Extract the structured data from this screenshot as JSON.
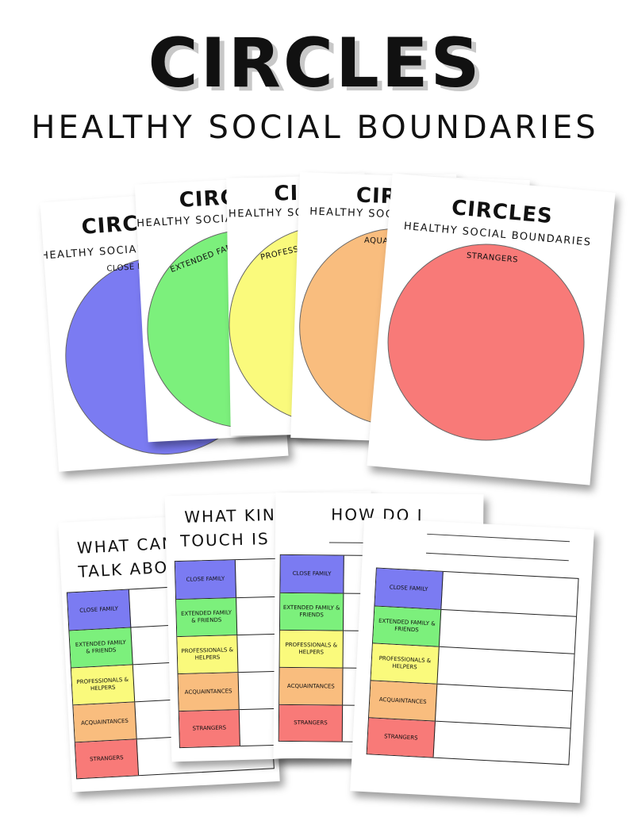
{
  "header": {
    "title": "CIRCLES",
    "subtitle": "HEALTHY SOCIAL BOUNDARIES"
  },
  "circle_sheets": [
    {
      "title": "CIRCLES",
      "subtitle": "HEALTHY SOCIAL BOUNDARIES",
      "label": "CLOSE FAMILY",
      "color": "#7b7bf2"
    },
    {
      "title": "CIRCLES",
      "subtitle": "HEALTHY SOCIAL BOUNDARIES",
      "label": "EXTENDED FAMILY & FRIENDS",
      "color": "#7cf07c"
    },
    {
      "title": "CIRCLES",
      "subtitle": "HEALTHY SOCIAL BOUNDARIES",
      "label": "PROFESSIONALS & HELPERS",
      "color": "#fafa7c"
    },
    {
      "title": "CIRCLES",
      "subtitle": "HEALTHY SOCIAL BOUNDARIES",
      "label": "AQUAINTANCES",
      "color": "#f9bd7e"
    },
    {
      "title": "CIRCLES",
      "subtitle": "HEALTHY SOCIAL BOUNDARIES",
      "label": "STRANGERS",
      "color": "#f87a78"
    }
  ],
  "worksheets": [
    {
      "title_line1": "WHAT CAN I",
      "title_line2": "TALK ABOUT?"
    },
    {
      "title_line1": "WHAT KIND OF",
      "title_line2": "TOUCH IS OK?"
    },
    {
      "title_line1": "HOW DO I",
      "title_line2": ""
    },
    {
      "title_line1": "",
      "title_line2": ""
    }
  ],
  "categories": [
    {
      "label": "CLOSE FAMILY",
      "color": "#7b7bf2"
    },
    {
      "label": "EXTENDED FAMILY & FRIENDS",
      "color": "#7cf07c"
    },
    {
      "label": "PROFESSIONALS & HELPERS",
      "color": "#fafa7c"
    },
    {
      "label": "ACQUAINTANCES",
      "color": "#f9bd7e"
    },
    {
      "label": "STRANGERS",
      "color": "#f87a78"
    }
  ]
}
